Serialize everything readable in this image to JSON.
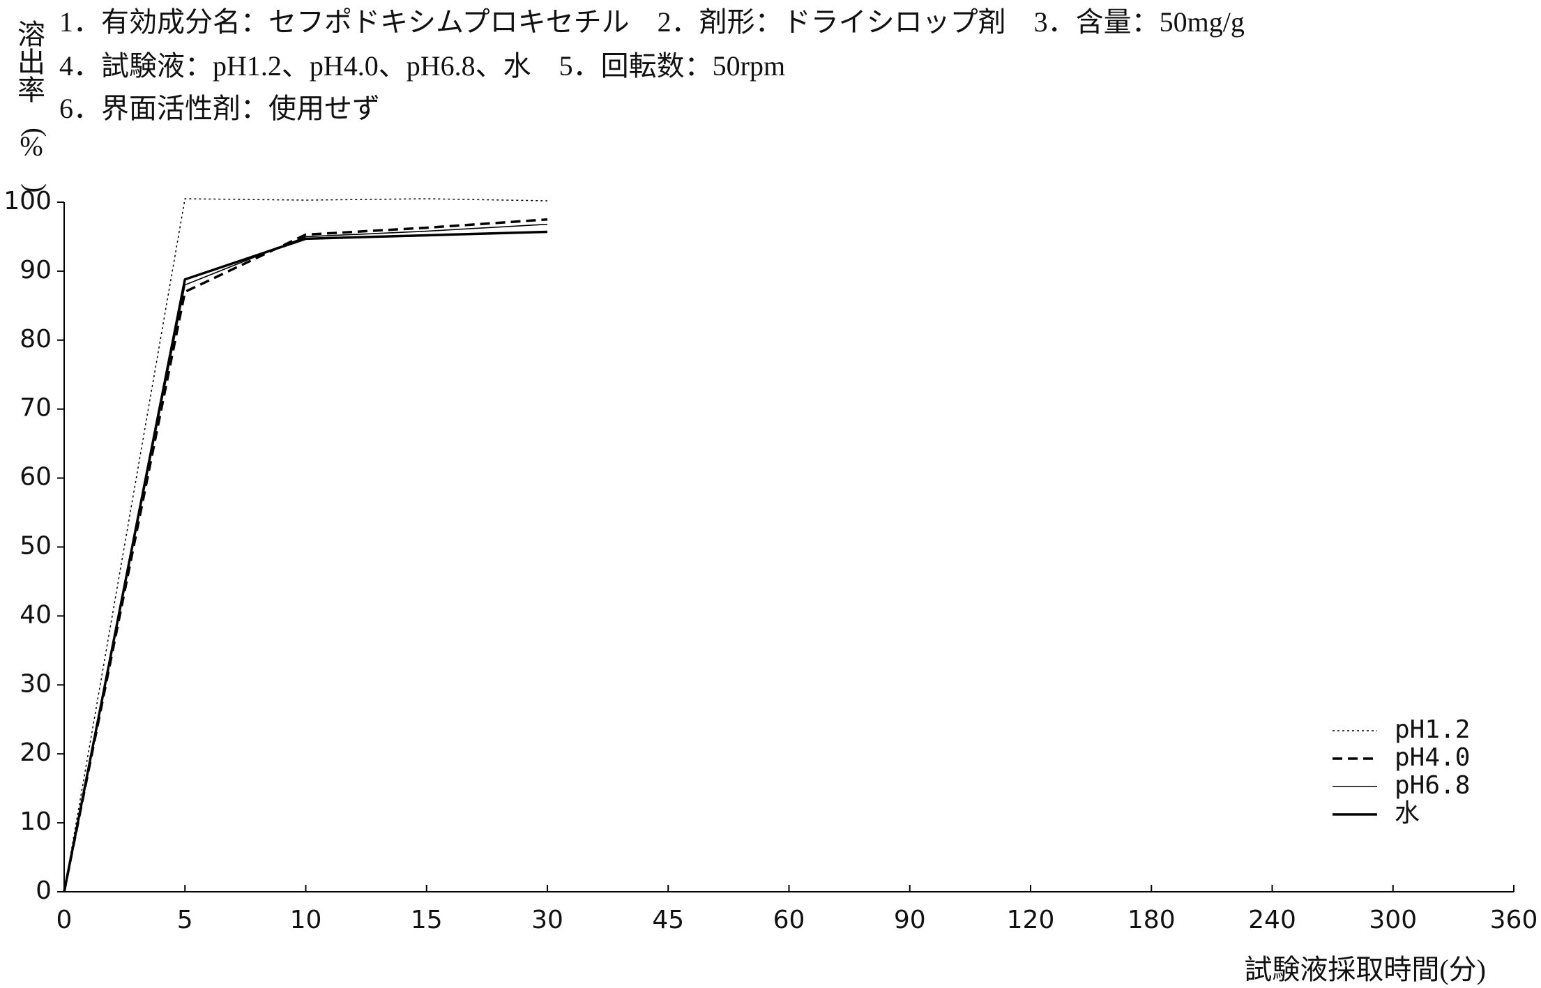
{
  "chart_data": {
    "type": "line",
    "header": [
      "1．有効成分名：セフポドキシムプロキセチル　2．剤形：ドライシロップ剤　3．含量：50mg/g",
      "4．試験液：pH1.2、pH4.0、pH6.8、水　5．回転数：50rpm",
      "6．界面活性剤：使用せず"
    ],
    "y_label": "溶出率(%)",
    "x_label": "試験液採取時間(分)",
    "categories": [
      "0",
      "5",
      "10",
      "15",
      "30",
      "45",
      "60",
      "90",
      "120",
      "180",
      "240",
      "300",
      "360"
    ],
    "ylim": [
      0,
      100
    ],
    "yticks": [
      0,
      10,
      20,
      30,
      40,
      50,
      60,
      70,
      80,
      90,
      100
    ],
    "legend": "lower right",
    "series": [
      {
        "name": "pH1.2",
        "color": "#000000",
        "style": "dotted",
        "values": [
          0,
          100.5,
          100.3,
          100.5,
          100.2,
          null,
          null,
          null,
          null,
          null,
          null,
          null,
          null
        ]
      },
      {
        "name": "pH4.0",
        "color": "#000000",
        "style": "dashed",
        "values": [
          0,
          87,
          95.3,
          96.3,
          97.5,
          null,
          null,
          null,
          null,
          null,
          null,
          null,
          null
        ]
      },
      {
        "name": "pH6.8",
        "color": "#000000",
        "style": "solid-thin",
        "values": [
          0,
          88,
          95,
          95.8,
          96.8,
          null,
          null,
          null,
          null,
          null,
          null,
          null,
          null
        ]
      },
      {
        "name": "水",
        "color": "#000000",
        "style": "solid",
        "values": [
          0,
          88.8,
          94.7,
          95.2,
          95.7,
          null,
          null,
          null,
          null,
          null,
          null,
          null,
          null
        ]
      }
    ]
  }
}
